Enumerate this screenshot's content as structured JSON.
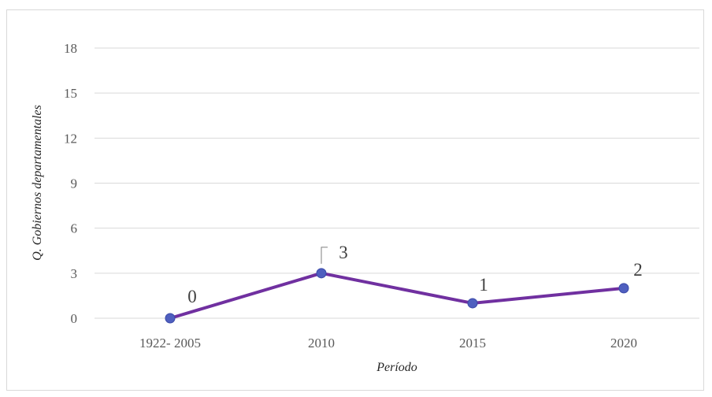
{
  "chart_data": {
    "type": "line",
    "title": "",
    "xlabel": "Período",
    "ylabel": "Q. Gobiernos departamentales",
    "categories": [
      "1922- 2005",
      "2010",
      "2015",
      "2020"
    ],
    "series": [
      {
        "values": [
          0,
          3,
          1,
          2
        ]
      }
    ],
    "data_labels": [
      "0",
      "3",
      "1",
      "2"
    ],
    "ylim": [
      0,
      18
    ],
    "yticks": [
      0,
      3,
      6,
      9,
      12,
      15,
      18
    ],
    "grid": true,
    "legend": "none",
    "colors": {
      "line": "#7030a0",
      "marker": "#4f5fbf",
      "marker_edge": "#3b4aa8",
      "grid": "#d9d9d9"
    }
  }
}
